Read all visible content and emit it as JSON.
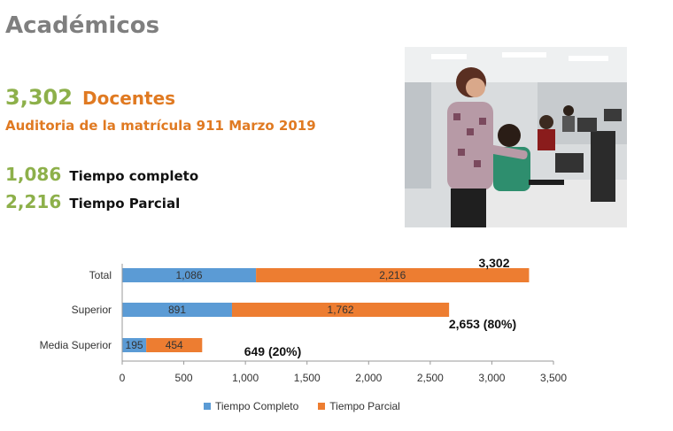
{
  "header": {
    "title": "Académicos"
  },
  "summary": {
    "total_value": "3,302",
    "total_label": "Docentes",
    "subtitle": "Auditoria de la matrícula 911 Marzo 2019",
    "stats": [
      {
        "value": "1,086",
        "label": "Tiempo completo"
      },
      {
        "value": "2,216",
        "label": "Tiempo Parcial"
      }
    ]
  },
  "colors": {
    "accent_green": "#8db04a",
    "accent_orange": "#e07a22",
    "series_completo": "#5b9bd5",
    "series_parcial": "#ed7d31"
  },
  "chart_data": {
    "type": "bar",
    "orientation": "horizontal",
    "stacked": true,
    "categories": [
      "Total",
      "Superior",
      "Media Superior"
    ],
    "series": [
      {
        "name": "Tiempo Completo",
        "values": [
          1086,
          891,
          195
        ]
      },
      {
        "name": "Tiempo Parcial",
        "values": [
          2216,
          1762,
          454
        ]
      }
    ],
    "data_labels": [
      [
        "1,086",
        "891",
        "195"
      ],
      [
        "2,216",
        "1,762",
        "454"
      ]
    ],
    "annotations": [
      "3,302",
      "2,653 (80%)",
      "649 (20%)"
    ],
    "xlim": [
      0,
      3500
    ],
    "xticks": [
      "0",
      "500",
      "1,000",
      "1,500",
      "2,000",
      "2,500",
      "3,000",
      "3,500"
    ],
    "grid": false,
    "legend": "bottom"
  }
}
